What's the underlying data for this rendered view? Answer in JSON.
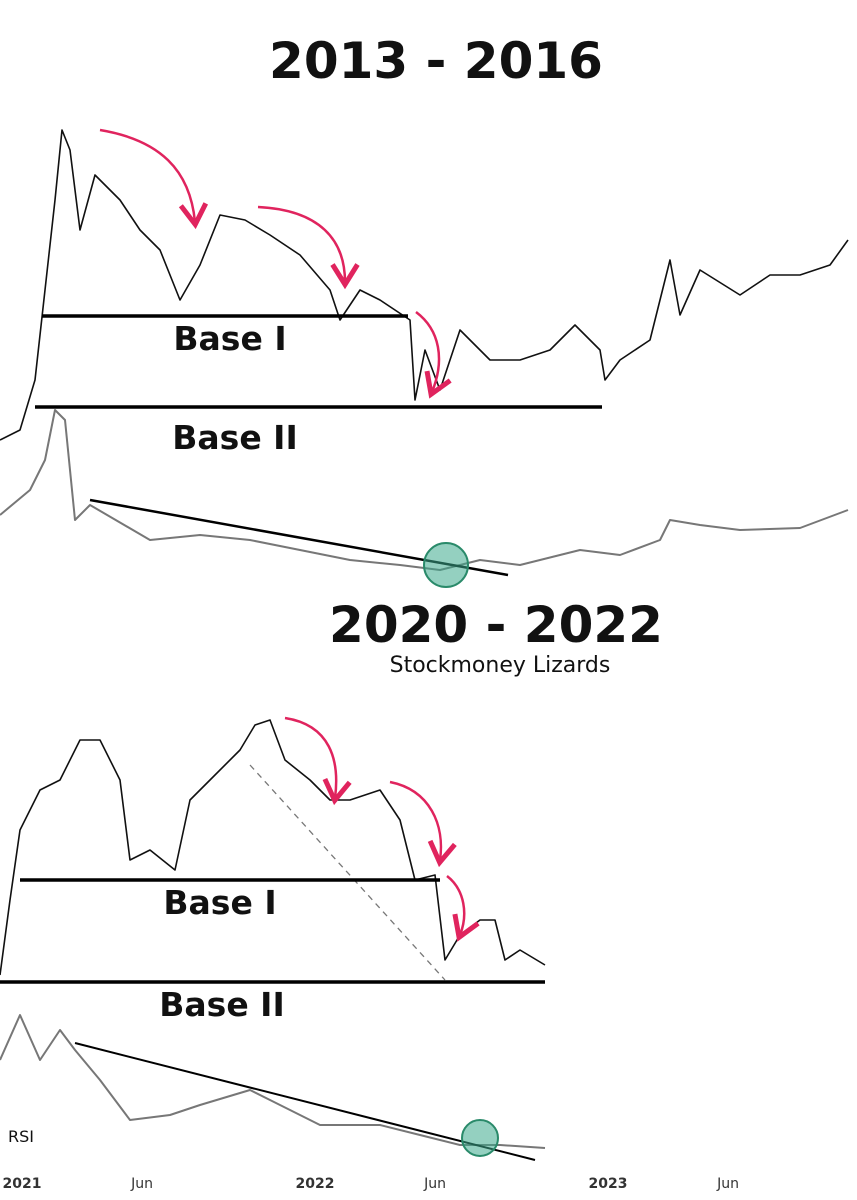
{
  "top_panel": {
    "title": "2013 - 2016",
    "labels": [
      "Base I",
      "Base II"
    ]
  },
  "bottom_panel": {
    "title": "2020 - 2022",
    "subtitle": "Stockmoney Lizards",
    "labels": [
      "Base I",
      "Base II"
    ],
    "indicator": "RSI"
  },
  "x_axis": {
    "labels": [
      "2021",
      "Jun",
      "2022",
      "Jun",
      "2023",
      "Jun"
    ]
  }
}
